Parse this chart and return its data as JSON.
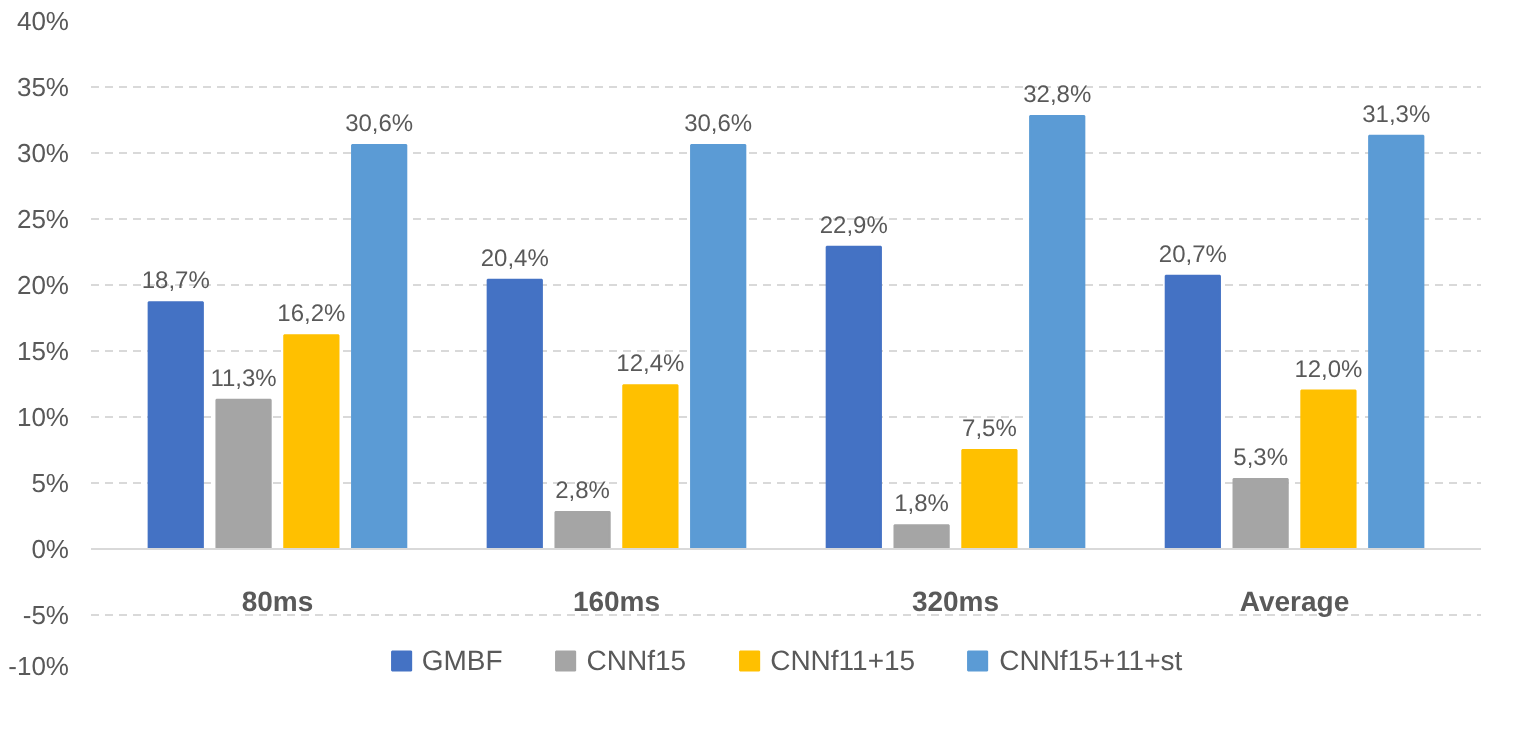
{
  "chart_data": {
    "type": "bar",
    "categories": [
      "80ms",
      "160ms",
      "320ms",
      "Average"
    ],
    "series": [
      {
        "name": "GMBF",
        "color": "#4472c4",
        "values": [
          18.7,
          20.4,
          22.9,
          20.7
        ],
        "value_labels": [
          "18,7%",
          "20,4%",
          "22,9%",
          "20,7%"
        ]
      },
      {
        "name": "CNNf15",
        "color": "#a5a5a5",
        "values": [
          11.3,
          2.8,
          1.8,
          5.3
        ],
        "value_labels": [
          "11,3%",
          "2,8%",
          "1,8%",
          "5,3%"
        ]
      },
      {
        "name": "CNNf11+15",
        "color": "#ffc000",
        "values": [
          16.2,
          12.4,
          7.5,
          12.0
        ],
        "value_labels": [
          "16,2%",
          "12,4%",
          "7,5%",
          "12,0%"
        ]
      },
      {
        "name": "CNNf15+11+st",
        "color": "#5b9bd5",
        "values": [
          30.6,
          30.6,
          32.8,
          31.3
        ],
        "value_labels": [
          "30,6%",
          "30,6%",
          "32,8%",
          "31,3%"
        ]
      }
    ],
    "ylim": [
      -10,
      40
    ],
    "yticks": [
      {
        "value": -10,
        "label": "-10%"
      },
      {
        "value": -5,
        "label": "-5%"
      },
      {
        "value": 0,
        "label": "0%"
      },
      {
        "value": 5,
        "label": "5%"
      },
      {
        "value": 10,
        "label": "10%"
      },
      {
        "value": 15,
        "label": "15%"
      },
      {
        "value": 20,
        "label": "20%"
      },
      {
        "value": 25,
        "label": "25%"
      },
      {
        "value": 30,
        "label": "30%"
      },
      {
        "value": 35,
        "label": "35%"
      },
      {
        "value": 40,
        "label": "40%"
      }
    ],
    "grid": "y",
    "legend": "bottom"
  }
}
